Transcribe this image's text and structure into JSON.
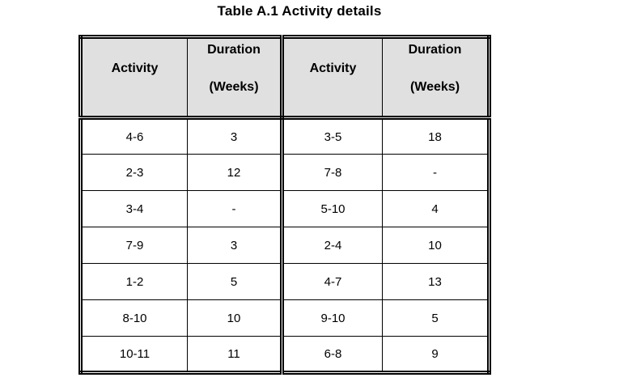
{
  "title": "Table A.1 Activity details",
  "table": {
    "header_bg": "#e0e0e0",
    "border_color": "#000000",
    "columns": [
      {
        "line1": "Activity",
        "line2": ""
      },
      {
        "line1": "Duration",
        "line2": "(Weeks)"
      },
      {
        "line1": "Activity",
        "line2": ""
      },
      {
        "line1": "Duration",
        "line2": "(Weeks)"
      }
    ],
    "rows": [
      [
        "4-6",
        "3",
        "3-5",
        "18"
      ],
      [
        "2-3",
        "12",
        "7-8",
        "-"
      ],
      [
        "3-4",
        "-",
        "5-10",
        "4"
      ],
      [
        "7-9",
        "3",
        "2-4",
        "10"
      ],
      [
        "1-2",
        "5",
        "4-7",
        "13"
      ],
      [
        "8-10",
        "10",
        "9-10",
        "5"
      ],
      [
        "10-11",
        "11",
        "6-8",
        "9"
      ]
    ]
  }
}
